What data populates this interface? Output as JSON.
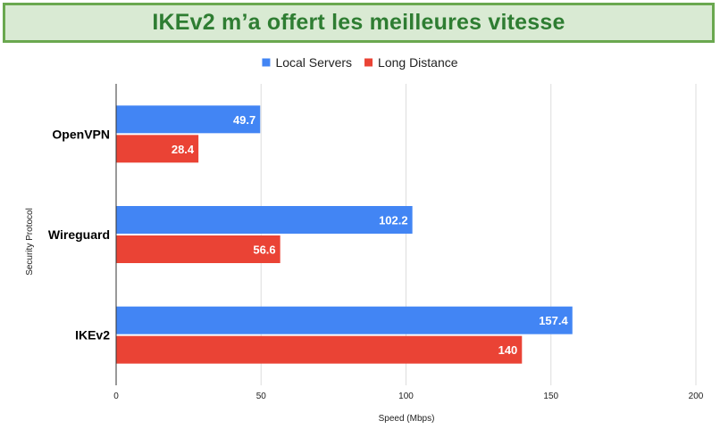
{
  "title": "IKEv2 m’a offert les meilleures vitesse",
  "colors": {
    "banner_bg": "#d9ead3",
    "banner_border": "#6aa84f",
    "title_text": "#2e7d32",
    "local": "#4285f4",
    "long": "#ea4335",
    "grid": "#dddddd",
    "axis": "#333333"
  },
  "chart_data": {
    "type": "bar",
    "orientation": "horizontal",
    "categories": [
      "OpenVPN",
      "Wireguard",
      "IKEv2"
    ],
    "series": [
      {
        "name": "Local Servers",
        "color": "#4285f4",
        "values": [
          49.7,
          102.2,
          157.4
        ]
      },
      {
        "name": "Long Distance",
        "color": "#ea4335",
        "values": [
          28.4,
          56.6,
          140
        ]
      }
    ],
    "xlabel": "Speed (Mbps)",
    "ylabel": "Security Protocol",
    "xlim": [
      0,
      200
    ],
    "xticks": [
      0,
      50,
      100,
      150,
      200
    ],
    "grid": true,
    "legend": "top-center",
    "data_labels": true
  }
}
